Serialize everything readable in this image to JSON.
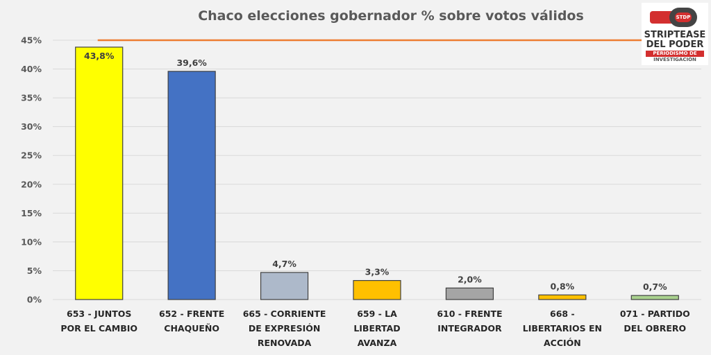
{
  "chart_data": {
    "type": "bar",
    "title": "Chaco elecciones gobernador % sobre votos válidos",
    "xlabel": "",
    "ylabel": "",
    "ylim": [
      0,
      45
    ],
    "yticks": [
      0,
      5,
      10,
      15,
      20,
      25,
      30,
      35,
      40,
      45
    ],
    "ytick_labels": [
      "0%",
      "5%",
      "10%",
      "15%",
      "20%",
      "25%",
      "30%",
      "35%",
      "40%",
      "45%"
    ],
    "grid": true,
    "legend": "none",
    "reference_line": {
      "value": 45,
      "color": "#ed7d31"
    },
    "categories": [
      [
        "653 - JUNTOS",
        "POR EL CAMBIO"
      ],
      [
        "652 - FRENTE",
        "CHAQUEÑO"
      ],
      [
        "665 - CORRIENTE",
        "DE EXPRESIÓN",
        "RENOVADA"
      ],
      [
        "659 - LA",
        "LIBERTAD",
        "AVANZA"
      ],
      [
        "610 - FRENTE",
        "INTEGRADOR"
      ],
      [
        "668 -",
        "LIBERTARIOS EN",
        "ACCIÓN"
      ],
      [
        "071 - PARTIDO",
        "DEL OBRERO"
      ]
    ],
    "values": [
      43.8,
      39.6,
      4.7,
      3.3,
      2.0,
      0.8,
      0.7
    ],
    "data_labels": [
      "43,8%",
      "39,6%",
      "4,7%",
      "3,3%",
      "2,0%",
      "0,8%",
      "0,7%"
    ],
    "colors": [
      "#ffff00",
      "#4472c4",
      "#adb9ca",
      "#ffc000",
      "#a5a5a5",
      "#ffc000",
      "#a9d18e"
    ]
  },
  "logo": {
    "badge": "STDP",
    "line1": "STRIPTEASE",
    "line2": "DEL PODER",
    "line3": "PERIODISMO DE",
    "line4": "INVESTIGACIÓN"
  }
}
